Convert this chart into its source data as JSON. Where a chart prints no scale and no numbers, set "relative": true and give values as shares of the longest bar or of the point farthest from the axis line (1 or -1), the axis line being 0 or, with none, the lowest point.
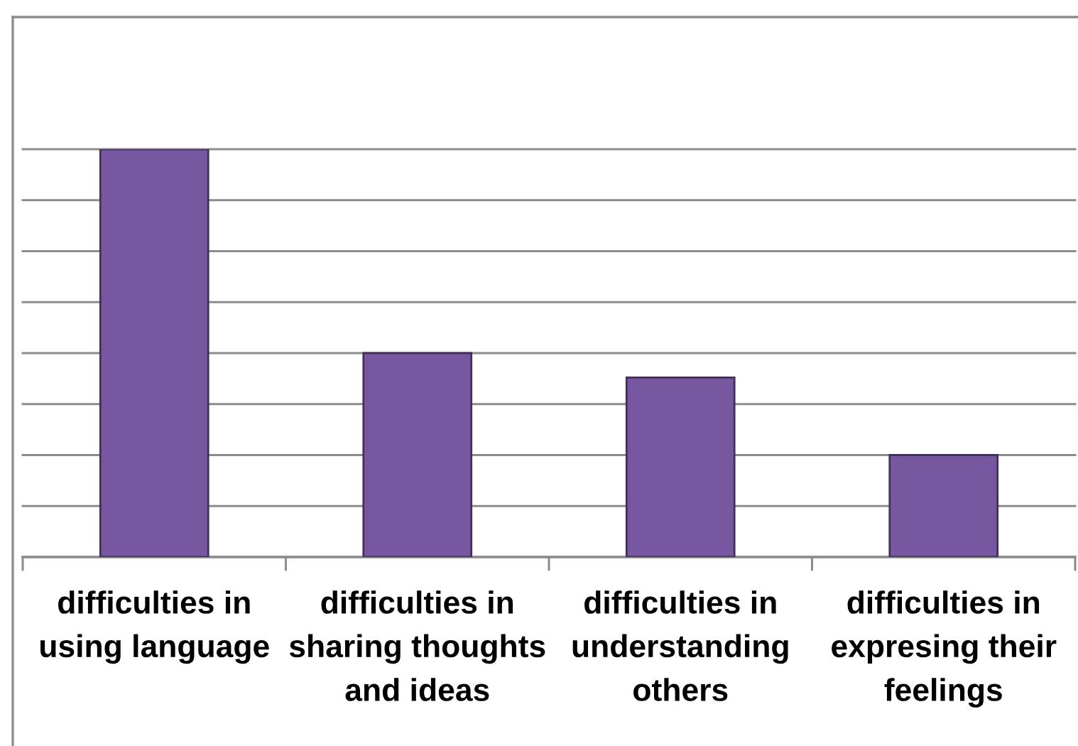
{
  "chart_data": {
    "type": "bar",
    "categories": [
      "difficulties in\nusing language",
      "difficulties in\nsharing thoughts\nand ideas",
      "difficulties in\nunderstanding\nothers",
      "difficulties in\nexpresing their\nfeelings"
    ],
    "values": [
      1,
      0.5,
      0.44,
      0.25
    ],
    "color": "#7657a0",
    "relative": true,
    "grid": "y"
  }
}
